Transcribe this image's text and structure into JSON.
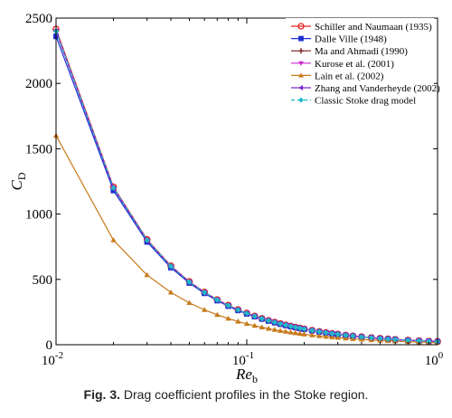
{
  "caption": {
    "label": "Fig. 3.",
    "text": "Drag coefficient profiles in the Stoke region."
  },
  "chart_data": {
    "type": "line",
    "xscale": "log",
    "xlim": [
      0.01,
      1
    ],
    "ylim": [
      0,
      2500
    ],
    "xlabel": "Re_b",
    "xlabel_main": "Re",
    "xlabel_sub": "b",
    "ylabel": "C_D",
    "ylabel_main": "C",
    "ylabel_sub": "D",
    "yticks": [
      0,
      500,
      1000,
      1500,
      2000,
      2500
    ],
    "xticks": [
      {
        "value": 0.01,
        "base": "10",
        "exp": "-2"
      },
      {
        "value": 0.1,
        "base": "10",
        "exp": "-1"
      },
      {
        "value": 1,
        "base": "10",
        "exp": "0"
      }
    ],
    "legend_position": "top-right",
    "x": [
      0.01,
      0.02,
      0.03,
      0.04,
      0.05,
      0.06,
      0.07,
      0.08,
      0.09,
      0.1,
      0.11,
      0.12,
      0.13,
      0.14,
      0.15,
      0.16,
      0.17,
      0.18,
      0.19,
      0.2,
      0.22,
      0.24,
      0.26,
      0.28,
      0.3,
      0.33,
      0.36,
      0.4,
      0.45,
      0.5,
      0.55,
      0.6,
      0.7,
      0.8,
      0.9,
      1.0
    ],
    "series": [
      {
        "name": "Schiller and Naumaan (1935)",
        "color": "#e8251f",
        "marker": "circle-open",
        "coef": 2415,
        "power": 1.0
      },
      {
        "name": "Dalle Ville (1948)",
        "color": "#1f2fd6",
        "marker": "square",
        "coef": 2360,
        "power": 1.0
      },
      {
        "name": "Ma and Ahmadi (1990)",
        "color": "#7a1f1f",
        "marker": "plus",
        "coef": 2400,
        "power": 1.0
      },
      {
        "name": "Kurose et al. (2001)",
        "color": "#d12ad1",
        "marker": "triangle-down",
        "coef": 2400,
        "power": 1.0
      },
      {
        "name": "Lain et al. (2002)",
        "color": "#c77a1a",
        "marker": "triangle-up",
        "coef": 1600,
        "power": 1.0
      },
      {
        "name": "Zhang and Vanderheyde (2002)",
        "color": "#7a2ad1",
        "marker": "triangle-left",
        "coef": 2400,
        "power": 1.0
      },
      {
        "name": "Classic Stoke drag model",
        "color": "#1fb8c8",
        "marker": "diamond",
        "dashed": true,
        "coef": 2400,
        "power": 1.0
      }
    ]
  }
}
